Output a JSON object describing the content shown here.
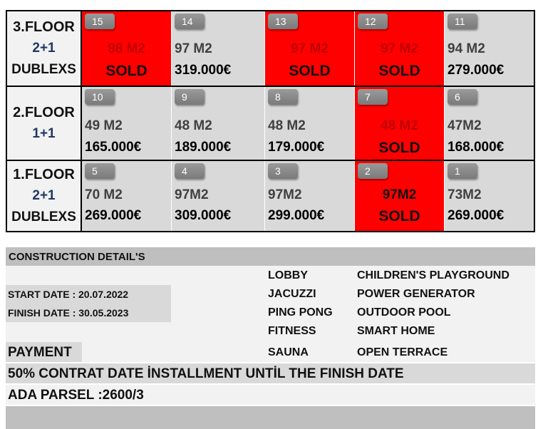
{
  "floors": [
    {
      "label": "3.FLOOR",
      "type": "2+1",
      "note": "DUBLEXS",
      "units": [
        {
          "no": "15",
          "area": "98 M2",
          "price": "SOLD",
          "sold": true
        },
        {
          "no": "14",
          "area": "97 M2",
          "price": "319.000€",
          "sold": false
        },
        {
          "no": "13",
          "area": "97 M2",
          "price": "SOLD",
          "sold": true
        },
        {
          "no": "12",
          "area": "97 M2",
          "price": "SOLD",
          "sold": true
        },
        {
          "no": "11",
          "area": "94 M2",
          "price": "279.000€",
          "sold": false
        }
      ]
    },
    {
      "label": "2.FLOOR",
      "type": "1+1",
      "note": "",
      "units": [
        {
          "no": "10",
          "area": "49 M2",
          "price": "165.000€",
          "sold": false
        },
        {
          "no": "9",
          "area": "48 M2",
          "price": "189.000€",
          "sold": false
        },
        {
          "no": "8",
          "area": "48 M2",
          "price": "179.000€",
          "sold": false
        },
        {
          "no": "7",
          "area": "48 M2",
          "price": "SOLD",
          "sold": true
        },
        {
          "no": "6",
          "area": "47M2",
          "price": "168.000€",
          "sold": false
        }
      ]
    },
    {
      "label": "1.FLOOR",
      "type": "2+1",
      "note": "DUBLEXS",
      "units": [
        {
          "no": "5",
          "area": "70 M2",
          "price": "269.000€",
          "sold": false
        },
        {
          "no": "4",
          "area": "97M2",
          "price": "309.000€",
          "sold": false
        },
        {
          "no": "3",
          "area": "97M2",
          "price": "299.000€",
          "sold": false
        },
        {
          "no": "2",
          "area": "97M2",
          "price": "SOLD",
          "sold": true
        },
        {
          "no": "1",
          "area": "73M2",
          "price": "269.000€",
          "sold": false
        }
      ]
    }
  ],
  "colors": {
    "sold": "#ff0000",
    "available": "#d9d9d9",
    "badge": "#888888"
  },
  "construction": {
    "title": "CONSTRUCTION DETAIL'S",
    "start_date": "START DATE : 20.07.2022",
    "finish_date": "FINISH DATE : 30.05.2023"
  },
  "amenities": {
    "col1": [
      "LOBBY",
      "JACUZZI",
      "PING PONG",
      "FITNESS",
      "SAUNA"
    ],
    "col2": [
      "CHILDREN'S PLAYGROUND",
      "POWER GENERATOR",
      "OUTDOOR POOL",
      "SMART HOME",
      "OPEN TERRACE"
    ]
  },
  "payment": {
    "title": "PAYMENT",
    "installment": "50% CONTRAT DATE İNSTALLMENT UNTİL THE FINISH DATE"
  },
  "ada_parsel": "ADA PARSEL :2600/3"
}
